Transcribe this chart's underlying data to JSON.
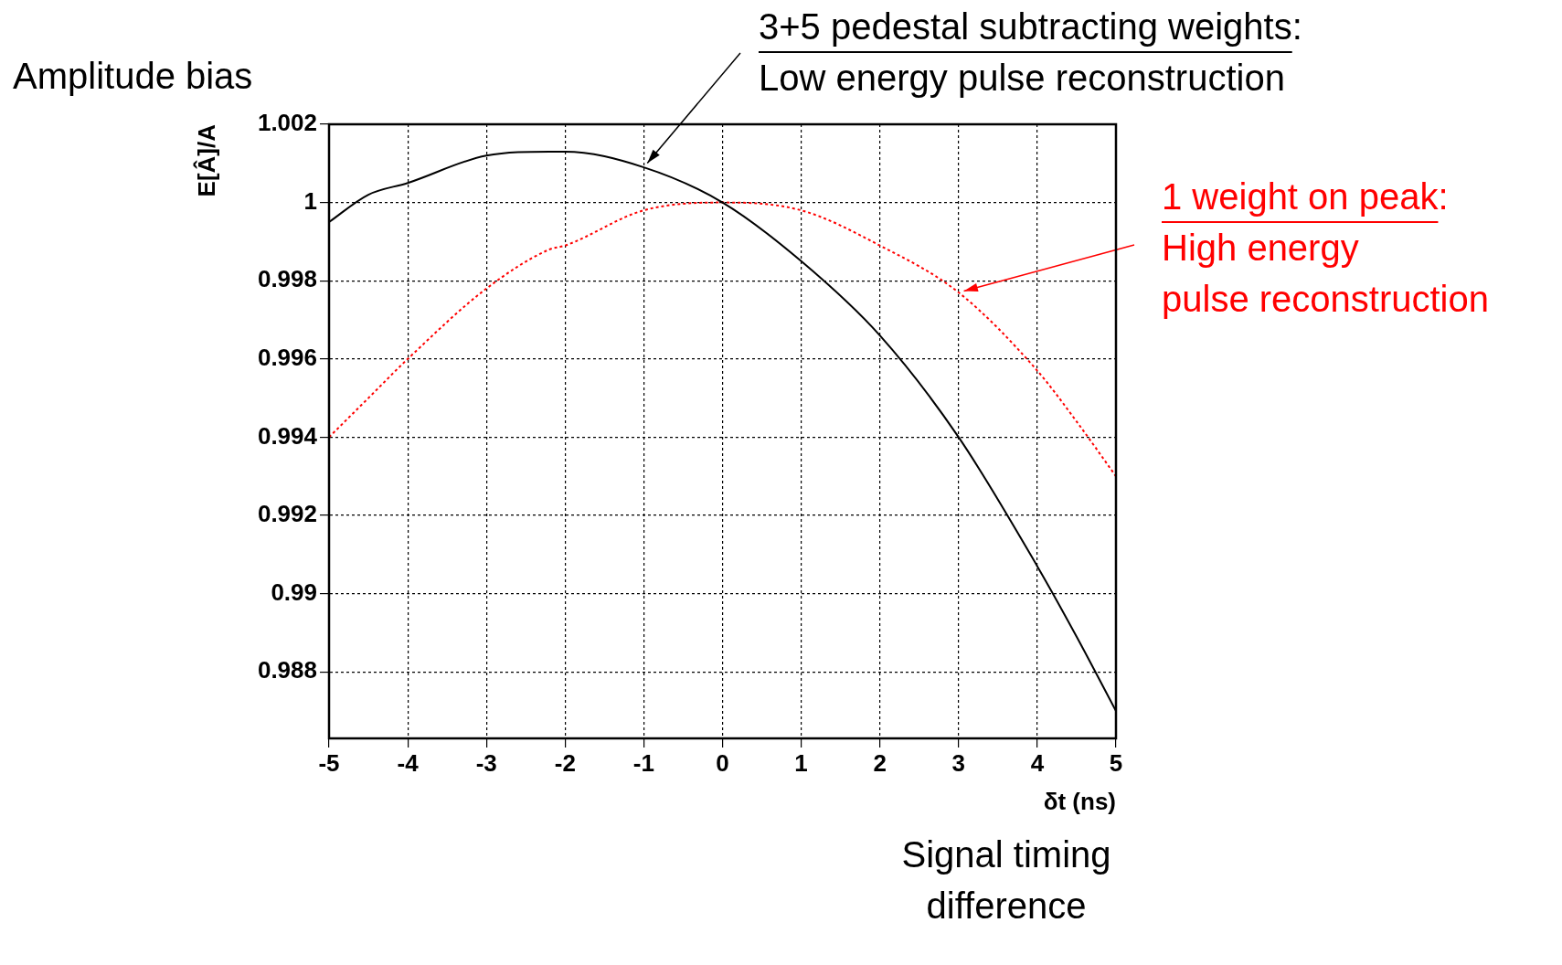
{
  "chart_data": {
    "type": "line",
    "xlabel": "δt (ns)",
    "ylabel": "E[Â]/A",
    "x": [
      -5,
      -4.5,
      -4,
      -3,
      -2.2,
      -2,
      -1,
      0,
      1,
      2,
      3,
      4,
      4.5,
      5
    ],
    "series": [
      {
        "color": "#000000",
        "line_style": "solid",
        "values": [
          0.9995,
          1.0002,
          1.0005,
          1.0012,
          1.0013,
          1.0013,
          1.0009,
          1.0,
          0.9985,
          0.9966,
          0.994,
          0.9907,
          0.9889,
          0.987
        ]
      },
      {
        "color": "#ff0000",
        "line_style": "dotted",
        "values": [
          0.994,
          0.995,
          0.996,
          0.9978,
          0.9988,
          0.9989,
          0.9998,
          1.0,
          0.9998,
          0.9989,
          0.9977,
          0.9957,
          0.9944,
          0.993
        ]
      }
    ],
    "xlim": [
      -5,
      5
    ],
    "xticks": [
      -5,
      -4,
      -3,
      -2,
      -1,
      0,
      1,
      2,
      3,
      4,
      5
    ],
    "ylim": [
      0.9863,
      1.002
    ],
    "yticks": [
      {
        "value": 0.988,
        "label": "0.988"
      },
      {
        "value": 0.99,
        "label": "0.99"
      },
      {
        "value": 0.992,
        "label": "0.992"
      },
      {
        "value": 0.994,
        "label": "0.994"
      },
      {
        "value": 0.996,
        "label": "0.996"
      },
      {
        "value": 0.998,
        "label": "0.998"
      },
      {
        "value": 1,
        "label": "1"
      },
      {
        "value": 1.002,
        "label": "1.002"
      }
    ],
    "grid": true,
    "legend": false,
    "marker": "none",
    "annotations": [
      "Amplitude bias",
      {
        "text": "3+5 pedestal subtracting weights:\nLow energy pulse reconstruction",
        "x": -1,
        "y": 1.0009
      },
      {
        "text": "1 weight on peak:\nHigh energy\npulse reconstruction",
        "x": 3,
        "y": 0.9977
      },
      "Signal timing\ndifference"
    ]
  }
}
